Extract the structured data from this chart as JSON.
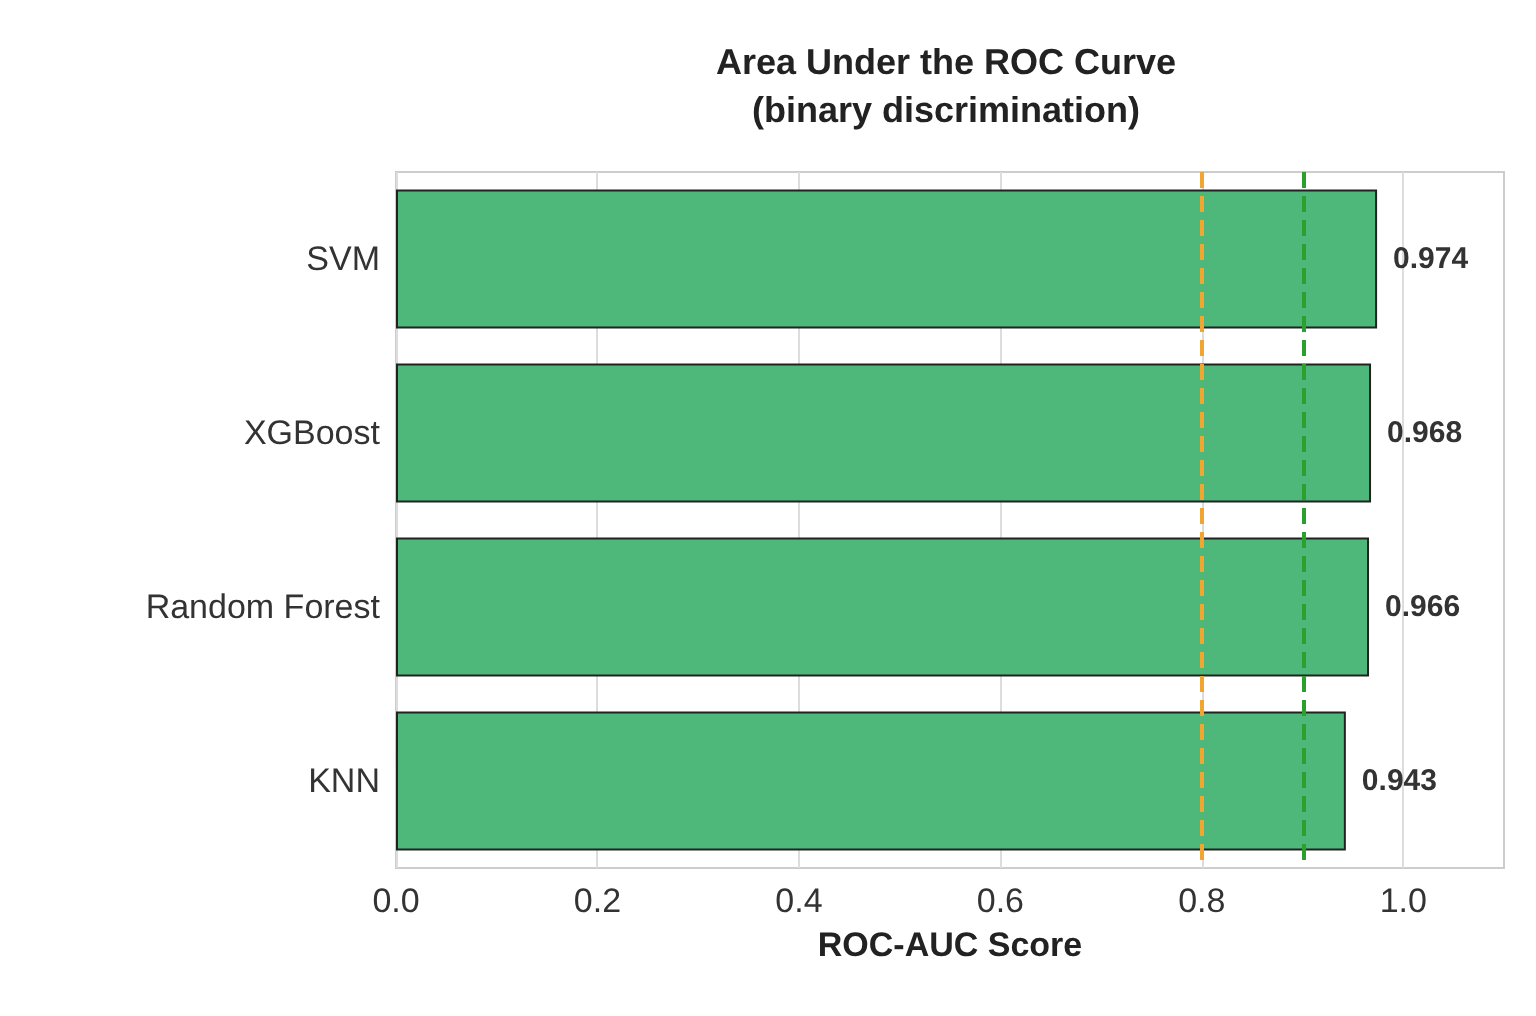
{
  "chart_data": {
    "type": "bar",
    "orientation": "horizontal",
    "title": "Area Under the ROC Curve\n(binary discrimination)",
    "xlabel": "ROC-AUC Score",
    "categories": [
      "SVM",
      "XGBoost",
      "Random Forest",
      "KNN"
    ],
    "values": [
      0.974,
      0.968,
      0.966,
      0.943
    ],
    "color": "#4db87a",
    "data_labels": true,
    "xlim": [
      0,
      1.1
    ],
    "xticks": [
      {
        "value": 0,
        "label": "0.0"
      },
      {
        "value": 0.2,
        "label": "0.2"
      },
      {
        "value": 0.4,
        "label": "0.4"
      },
      {
        "value": 0.6,
        "label": "0.6"
      },
      {
        "value": 0.8,
        "label": "0.8"
      },
      {
        "value": 1,
        "label": "1.0"
      }
    ],
    "ref_lines": [
      {
        "axis": "x",
        "value": 0.8,
        "color": "#f0a630",
        "line_style": "dashed"
      },
      {
        "axis": "x",
        "value": 0.9,
        "color": "#2ca02c",
        "line_style": "dashed"
      }
    ],
    "grid": "x"
  }
}
